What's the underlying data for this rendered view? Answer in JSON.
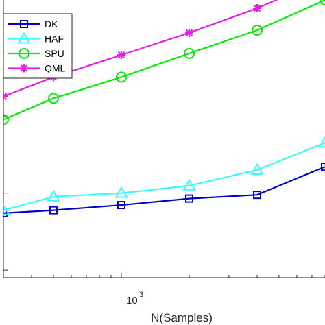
{
  "chart_data": {
    "type": "line",
    "title": "",
    "xlabel": "N(Samples)",
    "ylabel": "",
    "x_scale": "log",
    "y_scale": "log",
    "grid": false,
    "legend_position": "top-left",
    "x_tick": {
      "base": "10",
      "exponent": "3",
      "value": 1000
    },
    "x": [
      300,
      500,
      1000,
      2000,
      4000,
      8000
    ],
    "xlim": [
      300,
      8000
    ],
    "ylim": [
      0.0008,
      3.2
    ],
    "series": [
      {
        "name": "DK",
        "color": "#0000cc",
        "marker": "square",
        "values": [
          0.0055,
          0.006,
          0.007,
          0.0085,
          0.0095,
          0.022
        ]
      },
      {
        "name": "HAF",
        "color": "#33ffff",
        "marker": "triangle",
        "values": [
          0.006,
          0.009,
          0.01,
          0.0125,
          0.02,
          0.045
        ]
      },
      {
        "name": "SPU",
        "color": "#00ee00",
        "marker": "circle",
        "values": [
          0.09,
          0.17,
          0.32,
          0.65,
          1.3,
          3.2
        ]
      },
      {
        "name": "QML",
        "color": "#e61ae6",
        "marker": "asterisk",
        "values": [
          0.18,
          0.32,
          0.62,
          1.2,
          2.5,
          6.0
        ]
      }
    ]
  }
}
